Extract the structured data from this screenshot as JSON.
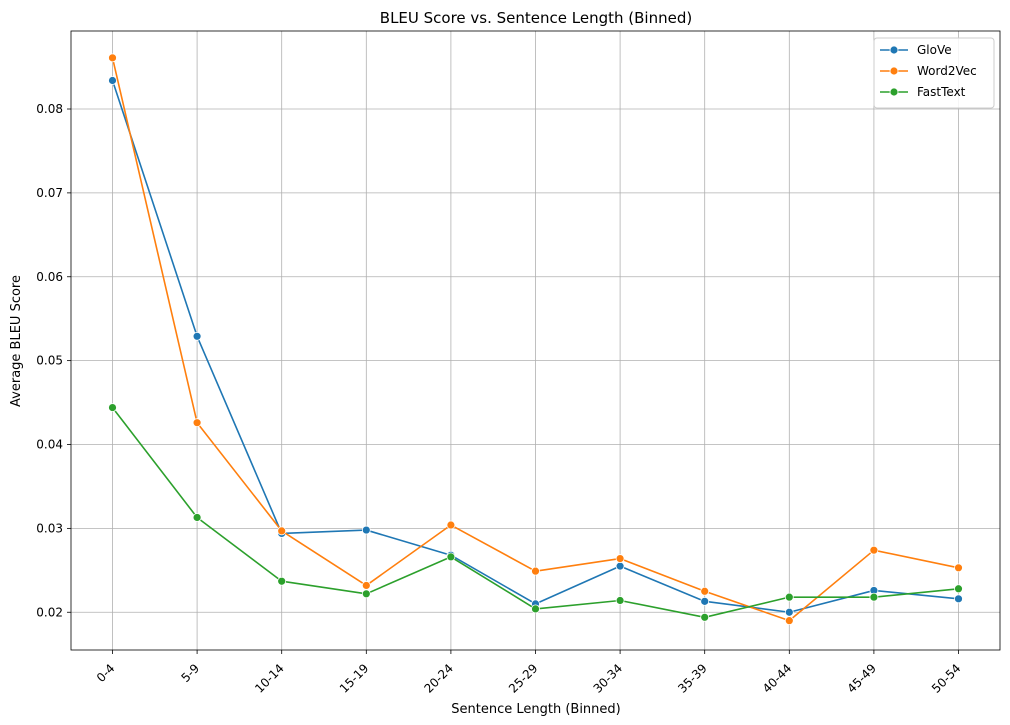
{
  "chart_data": {
    "type": "line",
    "title": "BLEU Score vs. Sentence Length (Binned)",
    "xlabel": "Sentence Length (Binned)",
    "ylabel": "Average BLEU Score",
    "categories": [
      "0-4",
      "5-9",
      "10-14",
      "15-19",
      "20-24",
      "25-29",
      "30-34",
      "35-39",
      "40-44",
      "45-49",
      "50-54"
    ],
    "ylim": [
      0.0155,
      0.0893
    ],
    "yticks": [
      0.02,
      0.03,
      0.04,
      0.05,
      0.06,
      0.07,
      0.08
    ],
    "ytick_labels": [
      "0.02",
      "0.03",
      "0.04",
      "0.05",
      "0.06",
      "0.07",
      "0.08"
    ],
    "grid": true,
    "legend_position": "top-right",
    "series": [
      {
        "name": "GloVe",
        "color": "#1f77b4",
        "values": [
          0.0834,
          0.0529,
          0.0294,
          0.0298,
          0.0268,
          0.021,
          0.0255,
          0.0213,
          0.02,
          0.0226,
          0.0216
        ]
      },
      {
        "name": "Word2Vec",
        "color": "#ff7f0e",
        "values": [
          0.0861,
          0.0426,
          0.0297,
          0.0232,
          0.0304,
          0.0249,
          0.0264,
          0.0225,
          0.019,
          0.0274,
          0.0253
        ]
      },
      {
        "name": "FastText",
        "color": "#2ca02c",
        "values": [
          0.0444,
          0.0313,
          0.0237,
          0.0222,
          0.0266,
          0.0204,
          0.0214,
          0.0194,
          0.0218,
          0.0218,
          0.0228
        ]
      }
    ]
  }
}
